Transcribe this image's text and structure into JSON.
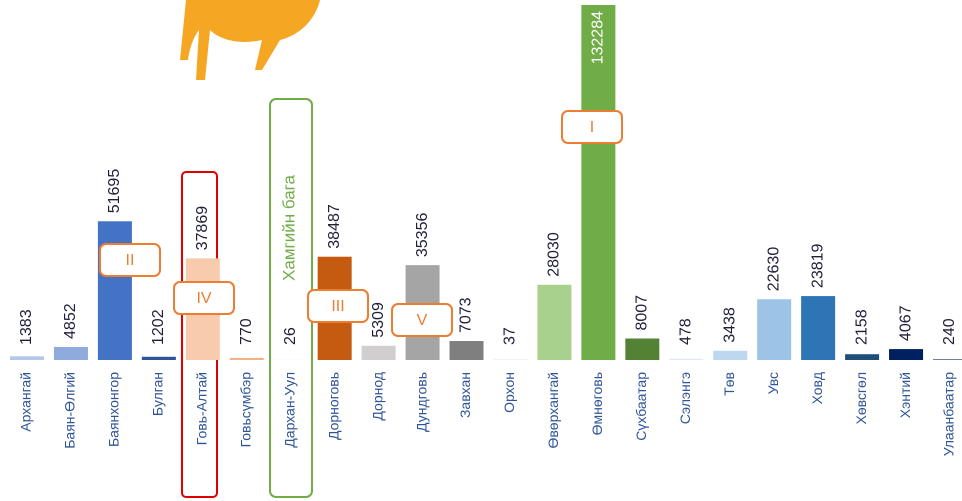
{
  "chart_data": {
    "type": "bar",
    "categories": [
      "Архангай",
      "Баян-Өлгий",
      "Баянхонгор",
      "Булган",
      "Говь-Алтай",
      "Говьсүмбэр",
      "Дархан-Уул",
      "Дорноговь",
      "Дорнод",
      "Дундговь",
      "Завхан",
      "Орхон",
      "Өвөрхангай",
      "Өмнөговь",
      "Сүхбаатар",
      "Сэлэнгэ",
      "Төв",
      "Увс",
      "Ховд",
      "Хөвсгөл",
      "Хэнтий",
      "Улаанбаатар"
    ],
    "values": [
      1383,
      4852,
      51695,
      1202,
      37869,
      770,
      26,
      38487,
      5309,
      35356,
      7073,
      37,
      28030,
      132284,
      8007,
      478,
      3438,
      22630,
      23819,
      2158,
      4067,
      240
    ],
    "colors": [
      "#b4c7e7",
      "#8faadc",
      "#4472c4",
      "#2f5597",
      "#f8cbad",
      "#f4b183",
      "#f4b183",
      "#c55a11",
      "#d0cece",
      "#a5a5a5",
      "#7f7f7f",
      "#7f7f7f",
      "#a9d18e",
      "#70ad47",
      "#548235",
      "#deebf7",
      "#bdd7ee",
      "#9dc3e6",
      "#2e75b6",
      "#1f4e79",
      "#002060",
      "#203864"
    ],
    "annotations": [
      "I",
      "II",
      "III",
      "IV",
      "V"
    ],
    "note": "Хамгийн бага"
  }
}
